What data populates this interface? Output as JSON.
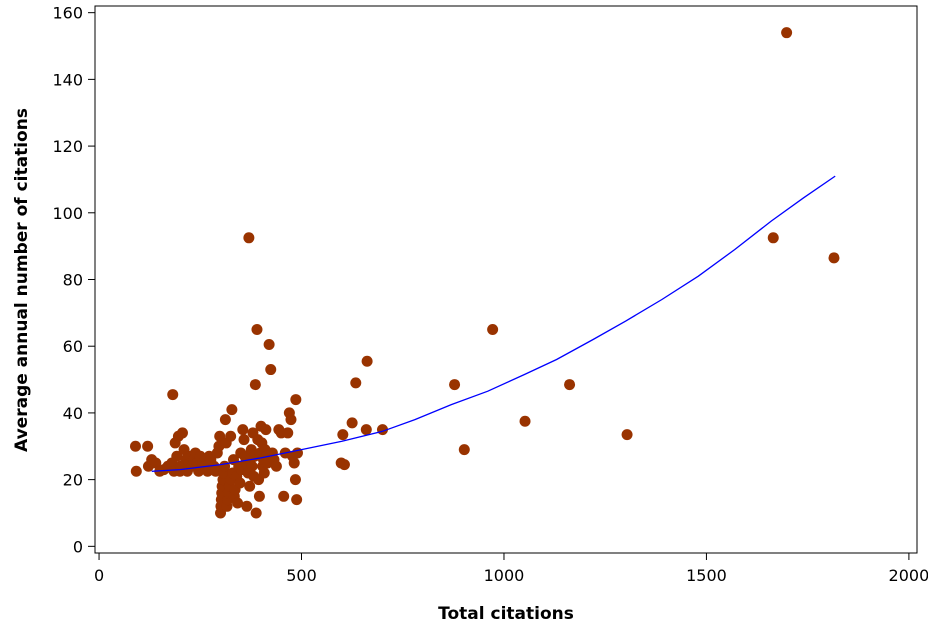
{
  "chart_data": {
    "type": "scatter",
    "title": "",
    "xlabel": "Total citations",
    "ylabel": "Average annual number of citations",
    "xlim": [
      -10,
      2020
    ],
    "ylim": [
      -2,
      162
    ],
    "xticks": [
      0,
      500,
      1000,
      1500,
      2000
    ],
    "yticks": [
      0,
      20,
      40,
      60,
      80,
      100,
      120,
      140,
      160
    ],
    "grid": false,
    "legend": "none",
    "marker_color": "#993300",
    "line_color": "#0000ff",
    "series": [
      {
        "kind": "points",
        "points": [
          [
            90,
            30
          ],
          [
            92,
            22.5
          ],
          [
            120,
            30
          ],
          [
            122,
            24
          ],
          [
            130,
            26
          ],
          [
            140,
            25
          ],
          [
            150,
            22.5
          ],
          [
            160,
            23
          ],
          [
            170,
            24
          ],
          [
            180,
            25
          ],
          [
            182,
            45.5
          ],
          [
            185,
            22.5
          ],
          [
            188,
            31
          ],
          [
            192,
            27
          ],
          [
            196,
            33
          ],
          [
            200,
            22.5
          ],
          [
            202,
            24
          ],
          [
            206,
            34
          ],
          [
            210,
            29
          ],
          [
            214,
            26
          ],
          [
            218,
            22.5
          ],
          [
            222,
            25
          ],
          [
            226,
            27
          ],
          [
            230,
            24
          ],
          [
            234,
            26
          ],
          [
            238,
            28
          ],
          [
            242,
            25
          ],
          [
            246,
            22.5
          ],
          [
            250,
            27
          ],
          [
            256,
            25
          ],
          [
            262,
            24
          ],
          [
            268,
            22.5
          ],
          [
            272,
            27
          ],
          [
            276,
            26
          ],
          [
            280,
            23
          ],
          [
            284,
            24
          ],
          [
            288,
            22.5
          ],
          [
            292,
            28
          ],
          [
            296,
            30
          ],
          [
            298,
            33
          ],
          [
            300,
            10
          ],
          [
            301,
            12
          ],
          [
            302,
            14
          ],
          [
            303,
            16
          ],
          [
            304,
            18
          ],
          [
            306,
            20
          ],
          [
            308,
            22
          ],
          [
            310,
            24
          ],
          [
            312,
            38
          ],
          [
            314,
            31
          ],
          [
            316,
            12
          ],
          [
            318,
            14
          ],
          [
            320,
            16
          ],
          [
            322,
            18
          ],
          [
            325,
            33
          ],
          [
            326,
            20
          ],
          [
            328,
            41
          ],
          [
            330,
            22
          ],
          [
            332,
            26
          ],
          [
            334,
            15
          ],
          [
            336,
            17
          ],
          [
            340,
            21
          ],
          [
            342,
            13
          ],
          [
            345,
            24
          ],
          [
            348,
            19
          ],
          [
            350,
            28
          ],
          [
            352,
            23
          ],
          [
            355,
            35
          ],
          [
            358,
            32
          ],
          [
            360,
            27
          ],
          [
            362,
            25
          ],
          [
            365,
            12
          ],
          [
            368,
            22
          ],
          [
            370,
            92.5
          ],
          [
            372,
            18
          ],
          [
            374,
            26
          ],
          [
            376,
            29
          ],
          [
            378,
            24
          ],
          [
            380,
            34
          ],
          [
            382,
            21
          ],
          [
            384,
            27
          ],
          [
            386,
            48.5
          ],
          [
            388,
            10
          ],
          [
            390,
            65
          ],
          [
            392,
            32
          ],
          [
            394,
            20
          ],
          [
            396,
            15
          ],
          [
            398,
            28
          ],
          [
            400,
            36
          ],
          [
            402,
            31
          ],
          [
            404,
            24
          ],
          [
            406,
            26
          ],
          [
            408,
            22
          ],
          [
            410,
            29
          ],
          [
            412,
            35
          ],
          [
            414,
            27
          ],
          [
            416,
            25
          ],
          [
            420,
            60.5
          ],
          [
            424,
            53
          ],
          [
            428,
            28
          ],
          [
            432,
            26
          ],
          [
            438,
            24
          ],
          [
            444,
            35
          ],
          [
            450,
            34
          ],
          [
            456,
            15
          ],
          [
            460,
            28
          ],
          [
            466,
            34
          ],
          [
            470,
            40
          ],
          [
            474,
            38
          ],
          [
            478,
            27
          ],
          [
            482,
            25
          ],
          [
            485,
            20
          ],
          [
            486,
            44
          ],
          [
            488,
            14
          ],
          [
            490,
            28
          ],
          [
            598,
            25
          ],
          [
            602,
            33.5
          ],
          [
            606,
            24.5
          ],
          [
            625,
            37
          ],
          [
            634,
            49
          ],
          [
            660,
            35
          ],
          [
            662,
            55.5
          ],
          [
            700,
            35
          ],
          [
            878,
            48.5
          ],
          [
            902,
            29
          ],
          [
            972,
            65
          ],
          [
            1052,
            37.5
          ],
          [
            1162,
            48.5
          ],
          [
            1304,
            33.5
          ],
          [
            1665,
            92.5
          ],
          [
            1698,
            154
          ],
          [
            1815,
            86.5
          ]
        ]
      },
      {
        "kind": "fit-line",
        "points": [
          [
            130,
            22.5
          ],
          [
            200,
            23
          ],
          [
            300,
            24.5
          ],
          [
            400,
            26.5
          ],
          [
            500,
            29
          ],
          [
            600,
            31.5
          ],
          [
            700,
            34.5
          ],
          [
            780,
            38
          ],
          [
            870,
            42.5
          ],
          [
            960,
            46.5
          ],
          [
            1050,
            51.5
          ],
          [
            1130,
            56
          ],
          [
            1220,
            62
          ],
          [
            1300,
            67.5
          ],
          [
            1390,
            74
          ],
          [
            1480,
            81
          ],
          [
            1570,
            89
          ],
          [
            1660,
            97.5
          ],
          [
            1740,
            104.5
          ],
          [
            1818,
            111
          ]
        ]
      }
    ]
  }
}
